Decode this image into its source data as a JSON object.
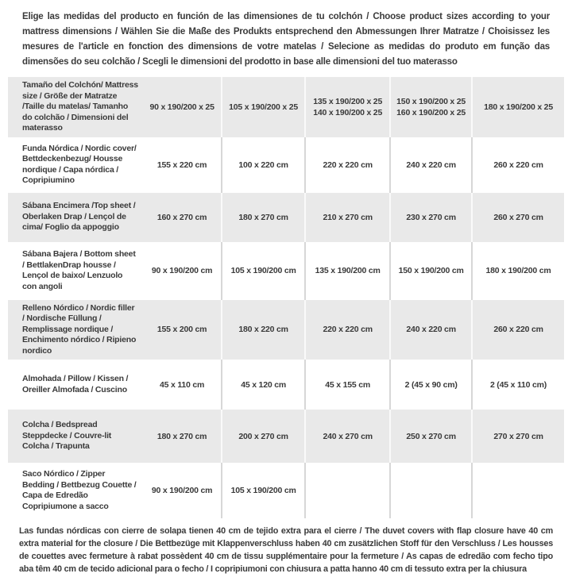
{
  "page": {
    "background": "#ffffff",
    "text_color": "#3a3a3a",
    "row_shade_color": "#e9e9e9",
    "divider_on_white": "#d7d7d7",
    "divider_on_shade": "#fafafa"
  },
  "intro": {
    "text": "Elige las medidas del producto en función de las dimensiones de tu colchón / Choose product sizes according to your mattress dimensions / Wählen Sie die Maße des Produkts entsprechend den Abmessungen Ihrer Matratze / Choisissez les mesures de l'article en fonction des dimensions de votre matelas / Selecione as medidas do produto em função das dimensões do seu colchão / Scegli le dimensioni del prodotto in base alle dimensioni del tuo materasso"
  },
  "size_table": {
    "rows": [
      {
        "label": "Tamaño del Colchón/ Mattress size / Größe der Matratze /Taille du matelas/ Tamanho do colchão / Dimensioni del materasso",
        "values": [
          "90 x 190/200 x 25",
          "105 x 190/200 x 25",
          "135 x 190/200 x 25\n140 x 190/200 x 25",
          "150 x 190/200 x 25\n160 x 190/200 x 25",
          "180 x 190/200 x 25"
        ]
      },
      {
        "label": "Funda Nórdica /  Nordic cover/ Bettdeckenbezug/ Housse nordique  / Capa nórdica / Copripiumino",
        "values": [
          "155 x 220 cm",
          "100 x 220 cm",
          "220 x 220 cm",
          "240 x 220 cm",
          "260 x 220 cm"
        ]
      },
      {
        "label": "Sábana Encimera /Top sheet / Oberlaken Drap / Lençol de cima/ Foglio da appoggio",
        "values": [
          "160 x 270 cm",
          "180 x 270 cm",
          "210 x 270 cm",
          "230 x 270 cm",
          "260 x 270 cm"
        ]
      },
      {
        "label": "Sábana Bajera / Bottom sheet / BettlakenDrap housse / Lençol de baixo/ Lenzuolo con angoli",
        "values": [
          "90 x 190/200 cm",
          "105 x 190/200 cm",
          "135 x 190/200 cm",
          "150 x 190/200 cm",
          "180 x 190/200 cm"
        ]
      },
      {
        "label": "Relleno Nórdico / Nordic filler / Nordische Füllung / Remplissage nordique / Enchimento nórdico / Ripieno nordico",
        "values": [
          "155 x 200 cm",
          "180 x 220 cm",
          "220 x 220 cm",
          "240 x 220 cm",
          "260 x 220 cm"
        ]
      },
      {
        "label": "Almohada  / Pillow / Kissen / Oreiller Almofada / Cuscino",
        "values": [
          "45 x 110 cm",
          "45 x 120 cm",
          "45 x 155 cm",
          "2 (45 x 90 cm)",
          "2 (45 x 110 cm)"
        ]
      },
      {
        "label": "Colcha / Bedspread Steppdecke / Couvre-lit Colcha / Trapunta",
        "values": [
          "180 x 270 cm",
          "200 x 270 cm",
          "240 x 270 cm",
          "250 x 270 cm",
          "270 x 270 cm"
        ]
      },
      {
        "label": "Saco Nórdico / Zipper Bedding / Bettbezug Couette  / Capa de Edredão Copripiumone a sacco",
        "values": [
          "90 x 190/200 cm",
          "105 x 190/200 cm",
          "",
          "",
          ""
        ]
      }
    ]
  },
  "footnote": {
    "text": "Las fundas nórdicas con cierre de solapa tienen 40 cm de tejido extra para el cierre  / The duvet covers with flap closure have 40 cm extra material for the closure / Die Bettbezüge mit Klappenverschluss haben 40 cm zusätzlichen Stoff für den Verschluss / Les housses de couettes avec fermeture à rabat possèdent 40 cm de tissu supplémentaire pour la fermeture / As capas de edredão com fecho tipo aba têm 40 cm de tecido adicional para o fecho / I copripiumoni con chiusura a patta hanno 40 cm di tessuto extra per la chiusura"
  }
}
